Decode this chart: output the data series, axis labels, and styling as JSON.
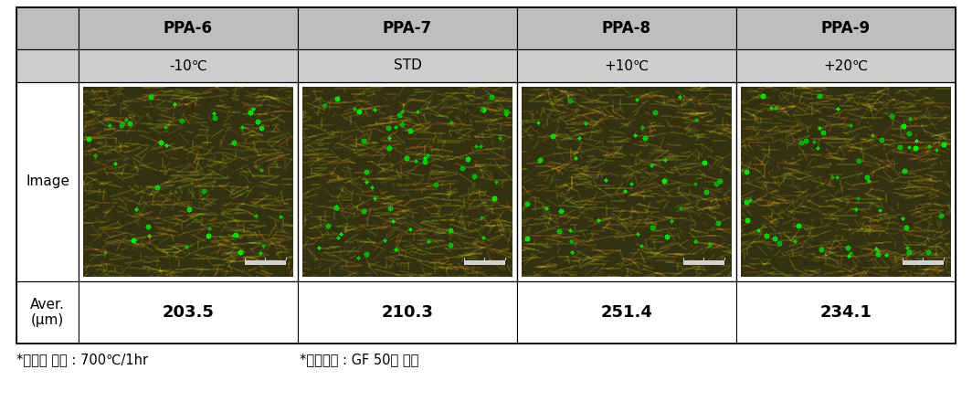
{
  "columns": [
    "PPA-6",
    "PPA-7",
    "PPA-8",
    "PPA-9"
  ],
  "subtitles": [
    "-10℃",
    "STD",
    "+10℃",
    "+20℃"
  ],
  "averages": [
    "203.5",
    "210.3",
    "251.4",
    "234.1"
  ],
  "row_label_image": "Image",
  "row_label_aver": "Aver.\n(μm)",
  "footer1": "*전처리 조건 : 700℃/1hr",
  "footer2": "*측정조건 : GF 50개 평균",
  "header_bg": "#bebebe",
  "subheader_bg": "#cecece",
  "border_color": "#000000",
  "white": "#ffffff",
  "fig_bg": "#ffffff",
  "header_fontsize": 12,
  "sub_fontsize": 11,
  "avg_fontsize": 13,
  "label_fontsize": 11,
  "footer_fontsize": 10.5
}
